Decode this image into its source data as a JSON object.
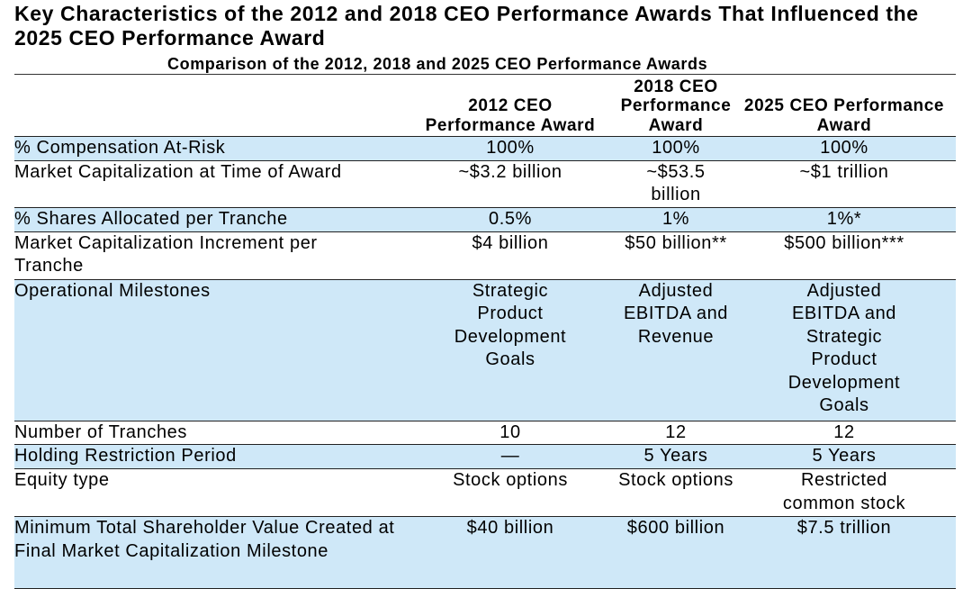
{
  "title": "Key Characteristics of the 2012 and 2018 CEO Performance Awards That Influenced the 2025 CEO Performance Award",
  "table_title": "Comparison of the 2012, 2018 and 2025 CEO Performance Awards",
  "columns": [
    "",
    "2012 CEO Performance Award",
    "2018 CEO Performance Award",
    "2025 CEO Performance Award"
  ],
  "rows": [
    {
      "label": "% Compensation At-Risk",
      "values": [
        "100%",
        "100%",
        "100%"
      ]
    },
    {
      "label": "Market Capitalization at Time of Award",
      "values": [
        "~$3.2 billion",
        "~$53.5 billion",
        "~$1 trillion"
      ]
    },
    {
      "label": "% Shares Allocated per Tranche",
      "values": [
        "0.5%",
        "1%",
        "1%*"
      ]
    },
    {
      "label": "Market Capitalization Increment per Tranche",
      "values": [
        "$4 billion",
        "$50 billion**",
        "$500 billion***"
      ]
    },
    {
      "label": "Operational Milestones",
      "values": [
        "Strategic Product Development Goals",
        "Adjusted EBITDA and Revenue",
        "Adjusted EBITDA and Strategic Product Development Goals"
      ]
    },
    {
      "label": "Number of Tranches",
      "values": [
        "10",
        "12",
        "12"
      ]
    },
    {
      "label": "Holding Restriction Period",
      "values": [
        "—",
        "5 Years",
        "5 Years"
      ]
    },
    {
      "label": "Equity type",
      "values": [
        "Stock options",
        "Stock options",
        "Restricted common stock"
      ]
    },
    {
      "label": "Minimum Total Shareholder Value Created at Final Market Capitalization Milestone",
      "values": [
        "$40 billion",
        "$600 billion",
        "$7.5 trillion"
      ]
    }
  ],
  "colors": {
    "row_shading": "#cfe8f8",
    "rule": "#222222"
  }
}
